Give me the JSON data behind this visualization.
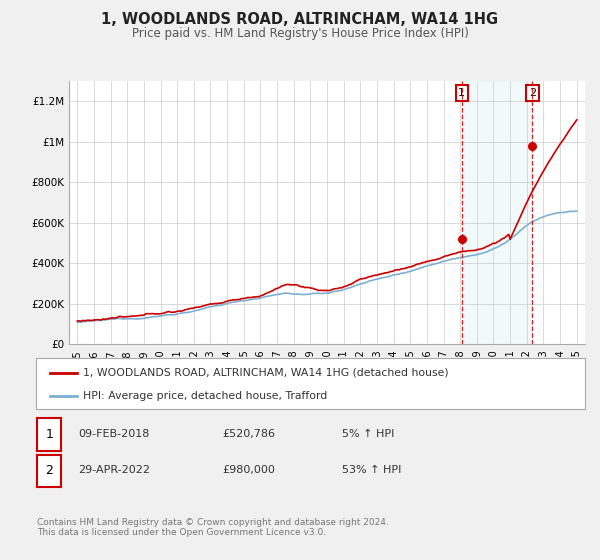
{
  "title": "1, WOODLANDS ROAD, ALTRINCHAM, WA14 1HG",
  "subtitle": "Price paid vs. HM Land Registry's House Price Index (HPI)",
  "ylim": [
    0,
    1300000
  ],
  "xlim": [
    1994.5,
    2025.5
  ],
  "yticks": [
    0,
    200000,
    400000,
    600000,
    800000,
    1000000,
    1200000
  ],
  "ytick_labels": [
    "£0",
    "£200K",
    "£400K",
    "£600K",
    "£800K",
    "£1M",
    "£1.2M"
  ],
  "xticks": [
    1995,
    1996,
    1997,
    1998,
    1999,
    2000,
    2001,
    2002,
    2003,
    2004,
    2005,
    2006,
    2007,
    2008,
    2009,
    2010,
    2011,
    2012,
    2013,
    2014,
    2015,
    2016,
    2017,
    2018,
    2019,
    2020,
    2021,
    2022,
    2023,
    2024,
    2025
  ],
  "background_color": "#f0f0f0",
  "plot_bg_color": "#ffffff",
  "grid_color": "#cccccc",
  "legend_label_red": "1, WOODLANDS ROAD, ALTRINCHAM, WA14 1HG (detached house)",
  "legend_label_blue": "HPI: Average price, detached house, Trafford",
  "marker1_x": 2018.1,
  "marker1_y": 520786,
  "marker2_x": 2022.33,
  "marker2_y": 980000,
  "vline1_x": 2018.1,
  "vline2_x": 2022.33,
  "table_row1": [
    "1",
    "09-FEB-2018",
    "£520,786",
    "5% ↑ HPI"
  ],
  "table_row2": [
    "2",
    "29-APR-2022",
    "£980,000",
    "53% ↑ HPI"
  ],
  "footer": "Contains HM Land Registry data © Crown copyright and database right 2024.\nThis data is licensed under the Open Government Licence v3.0.",
  "red_color": "#cc0000",
  "blue_color": "#7eb0d4",
  "vline_color": "#cc0000",
  "border_color": "#aaaaaa",
  "text_color": "#333333",
  "footer_color": "#777777"
}
